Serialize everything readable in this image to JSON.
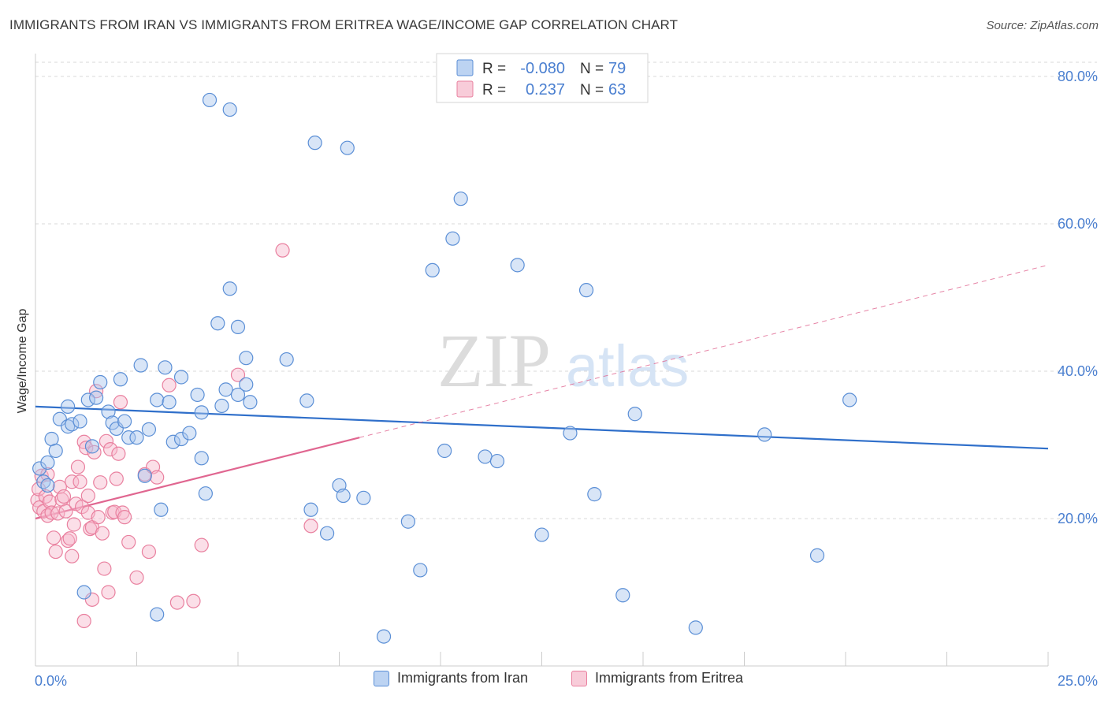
{
  "title": "IMMIGRANTS FROM IRAN VS IMMIGRANTS FROM ERITREA WAGE/INCOME GAP CORRELATION CHART",
  "source": "Source: ZipAtlas.com",
  "watermark": {
    "zip": "ZIP",
    "atlas": "atlas"
  },
  "colors": {
    "iran_fill": "#a9c6ee",
    "iran_stroke": "#5b8fd6",
    "iran_line": "#2f6fca",
    "eritrea_fill": "#f6b9cb",
    "eritrea_stroke": "#e9809f",
    "eritrea_line": "#e06690",
    "axis_text": "#4a7fd0",
    "grid": "#d9d9d9"
  },
  "chart_data": {
    "type": "scatter",
    "title": "IMMIGRANTS FROM IRAN VS IMMIGRANTS FROM ERITREA WAGE/INCOME GAP CORRELATION CHART",
    "ylabel": "Wage/Income Gap",
    "xlabel": "",
    "xlim": [
      0,
      25
    ],
    "ylim": [
      0,
      80
    ],
    "x_tick_labels": [
      "0.0%",
      "25.0%"
    ],
    "y_ticks": [
      20,
      40,
      60,
      80
    ],
    "y_tick_labels": [
      "20.0%",
      "40.0%",
      "60.0%",
      "80.0%"
    ],
    "grid": true,
    "legend_position": "top-center",
    "legend": [
      {
        "r_label": "R =",
        "r_value": "-0.080",
        "n_label": "N =",
        "n_value": "79"
      },
      {
        "r_label": "R =",
        "r_value": "0.237",
        "n_label": "N =",
        "n_value": "63"
      }
    ],
    "series": [
      {
        "name": "Immigrants from Iran",
        "trend": {
          "x": [
            0,
            25
          ],
          "y": [
            35.2,
            29.5
          ]
        },
        "points": [
          [
            0.1,
            26.8
          ],
          [
            0.2,
            25.0
          ],
          [
            0.3,
            24.5
          ],
          [
            0.3,
            27.6
          ],
          [
            0.4,
            30.8
          ],
          [
            0.5,
            29.2
          ],
          [
            0.6,
            33.5
          ],
          [
            0.8,
            32.5
          ],
          [
            0.8,
            35.2
          ],
          [
            0.9,
            32.8
          ],
          [
            1.1,
            33.2
          ],
          [
            1.3,
            36.1
          ],
          [
            1.4,
            29.8
          ],
          [
            1.5,
            36.4
          ],
          [
            1.6,
            38.5
          ],
          [
            1.8,
            34.5
          ],
          [
            1.9,
            33.0
          ],
          [
            2.0,
            32.2
          ],
          [
            2.1,
            38.9
          ],
          [
            2.2,
            33.2
          ],
          [
            2.3,
            31.0
          ],
          [
            2.5,
            31.0
          ],
          [
            2.6,
            40.8
          ],
          [
            2.7,
            25.8
          ],
          [
            2.8,
            32.1
          ],
          [
            3.0,
            7.0
          ],
          [
            3.0,
            36.1
          ],
          [
            3.1,
            21.2
          ],
          [
            3.2,
            40.5
          ],
          [
            3.3,
            35.8
          ],
          [
            3.4,
            30.4
          ],
          [
            3.6,
            39.2
          ],
          [
            3.6,
            30.8
          ],
          [
            3.8,
            31.6
          ],
          [
            4.0,
            36.8
          ],
          [
            4.1,
            34.4
          ],
          [
            4.1,
            28.2
          ],
          [
            4.2,
            23.4
          ],
          [
            4.3,
            76.8
          ],
          [
            4.6,
            35.3
          ],
          [
            4.7,
            37.5
          ],
          [
            4.8,
            75.5
          ],
          [
            4.8,
            51.2
          ],
          [
            4.5,
            46.5
          ],
          [
            5.0,
            36.8
          ],
          [
            5.0,
            46.0
          ],
          [
            5.2,
            41.8
          ],
          [
            5.2,
            38.2
          ],
          [
            5.3,
            35.8
          ],
          [
            6.2,
            41.6
          ],
          [
            6.7,
            36.0
          ],
          [
            6.9,
            71.0
          ],
          [
            6.8,
            21.2
          ],
          [
            7.2,
            18.0
          ],
          [
            7.5,
            24.5
          ],
          [
            7.6,
            23.1
          ],
          [
            7.7,
            70.3
          ],
          [
            8.1,
            22.8
          ],
          [
            8.6,
            4.0
          ],
          [
            9.2,
            19.6
          ],
          [
            9.5,
            13.0
          ],
          [
            9.8,
            53.7
          ],
          [
            10.1,
            29.2
          ],
          [
            10.3,
            58.0
          ],
          [
            10.5,
            63.4
          ],
          [
            11.1,
            28.4
          ],
          [
            11.4,
            27.8
          ],
          [
            11.9,
            54.4
          ],
          [
            12.5,
            17.8
          ],
          [
            13.2,
            31.6
          ],
          [
            13.6,
            51.0
          ],
          [
            13.8,
            23.3
          ],
          [
            14.5,
            9.6
          ],
          [
            14.8,
            34.2
          ],
          [
            16.3,
            5.2
          ],
          [
            18.0,
            31.4
          ],
          [
            19.3,
            15.0
          ],
          [
            20.1,
            36.1
          ],
          [
            1.2,
            10.0
          ]
        ]
      },
      {
        "name": "Immigrants from Eritrea",
        "trend": {
          "x": [
            0,
            8.0
          ],
          "y": [
            20.0,
            31.0
          ]
        },
        "trend_extended": {
          "x": [
            8.0,
            25
          ],
          "y": [
            31.0,
            54.4
          ]
        },
        "points": [
          [
            0.05,
            22.5
          ],
          [
            0.08,
            24.0
          ],
          [
            0.1,
            21.5
          ],
          [
            0.15,
            25.8
          ],
          [
            0.2,
            21.0
          ],
          [
            0.25,
            23.0
          ],
          [
            0.3,
            20.4
          ],
          [
            0.35,
            22.3
          ],
          [
            0.4,
            20.8
          ],
          [
            0.45,
            17.4
          ],
          [
            0.5,
            15.5
          ],
          [
            0.55,
            20.7
          ],
          [
            0.6,
            24.3
          ],
          [
            0.65,
            22.6
          ],
          [
            0.7,
            23.0
          ],
          [
            0.75,
            21.0
          ],
          [
            0.8,
            17.0
          ],
          [
            0.85,
            17.3
          ],
          [
            0.9,
            25.0
          ],
          [
            0.95,
            19.2
          ],
          [
            1.0,
            22.0
          ],
          [
            1.05,
            27.0
          ],
          [
            1.1,
            25.0
          ],
          [
            1.15,
            21.6
          ],
          [
            1.2,
            30.4
          ],
          [
            1.25,
            29.6
          ],
          [
            1.3,
            20.8
          ],
          [
            1.35,
            18.6
          ],
          [
            1.4,
            18.8
          ],
          [
            1.45,
            29.0
          ],
          [
            1.5,
            37.3
          ],
          [
            1.55,
            20.2
          ],
          [
            1.6,
            24.9
          ],
          [
            1.65,
            18.0
          ],
          [
            1.7,
            13.2
          ],
          [
            1.75,
            30.5
          ],
          [
            1.8,
            10.0
          ],
          [
            1.85,
            29.4
          ],
          [
            1.9,
            20.8
          ],
          [
            1.95,
            20.9
          ],
          [
            2.0,
            25.4
          ],
          [
            2.05,
            28.8
          ],
          [
            2.1,
            35.8
          ],
          [
            2.15,
            20.8
          ],
          [
            2.2,
            20.2
          ],
          [
            2.3,
            16.8
          ],
          [
            2.5,
            12.0
          ],
          [
            2.7,
            26.0
          ],
          [
            2.8,
            15.5
          ],
          [
            2.9,
            27.0
          ],
          [
            3.0,
            25.6
          ],
          [
            3.3,
            38.1
          ],
          [
            3.5,
            8.6
          ],
          [
            3.9,
            8.8
          ],
          [
            4.1,
            16.4
          ],
          [
            5.0,
            39.5
          ],
          [
            6.1,
            56.4
          ],
          [
            6.8,
            19.0
          ],
          [
            1.2,
            6.1
          ],
          [
            1.4,
            9.0
          ],
          [
            0.3,
            26.0
          ],
          [
            0.9,
            14.9
          ],
          [
            1.3,
            23.1
          ]
        ]
      }
    ]
  },
  "legend_bottom": [
    {
      "label": "Immigrants from Iran"
    },
    {
      "label": "Immigrants from Eritrea"
    }
  ]
}
